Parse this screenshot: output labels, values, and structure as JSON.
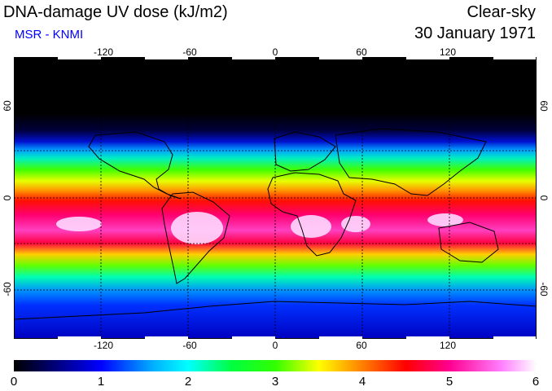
{
  "header": {
    "title": "DNA-damage UV dose (kJ/m2)",
    "source": "MSR - KNMI",
    "condition": "Clear-sky",
    "date": "30 January 1971"
  },
  "colors": {
    "source_text": "#0000ff",
    "grid": "#000000",
    "coast": "#000000"
  },
  "map": {
    "lon_range": [
      -180,
      180
    ],
    "lat_range": [
      -90,
      90
    ],
    "lon_ticks": [
      "-120",
      "-60",
      "0",
      "60",
      "120"
    ],
    "lat_ticks": [
      "60",
      "0",
      "-60"
    ],
    "lon_tick_values": [
      -120,
      -60,
      0,
      60,
      120
    ],
    "lat_tick_values": [
      60,
      0,
      -60
    ]
  },
  "colorbar": {
    "min": 0,
    "max": 6,
    "labels": [
      "0",
      "1",
      "2",
      "3",
      "4",
      "5",
      "6"
    ],
    "stops": [
      {
        "value": 0,
        "color": "#000000"
      },
      {
        "value": 1,
        "color": "#0000ff"
      },
      {
        "value": 1.6,
        "color": "#00b0ff"
      },
      {
        "value": 2,
        "color": "#00ffff"
      },
      {
        "value": 2.5,
        "color": "#00ff40"
      },
      {
        "value": 3,
        "color": "#30ff00"
      },
      {
        "value": 3.5,
        "color": "#ffff00"
      },
      {
        "value": 4,
        "color": "#ff8000"
      },
      {
        "value": 4.5,
        "color": "#ff0000"
      },
      {
        "value": 5,
        "color": "#ff0090"
      },
      {
        "value": 5.6,
        "color": "#ff80ff"
      },
      {
        "value": 6,
        "color": "#ffffff"
      }
    ]
  }
}
